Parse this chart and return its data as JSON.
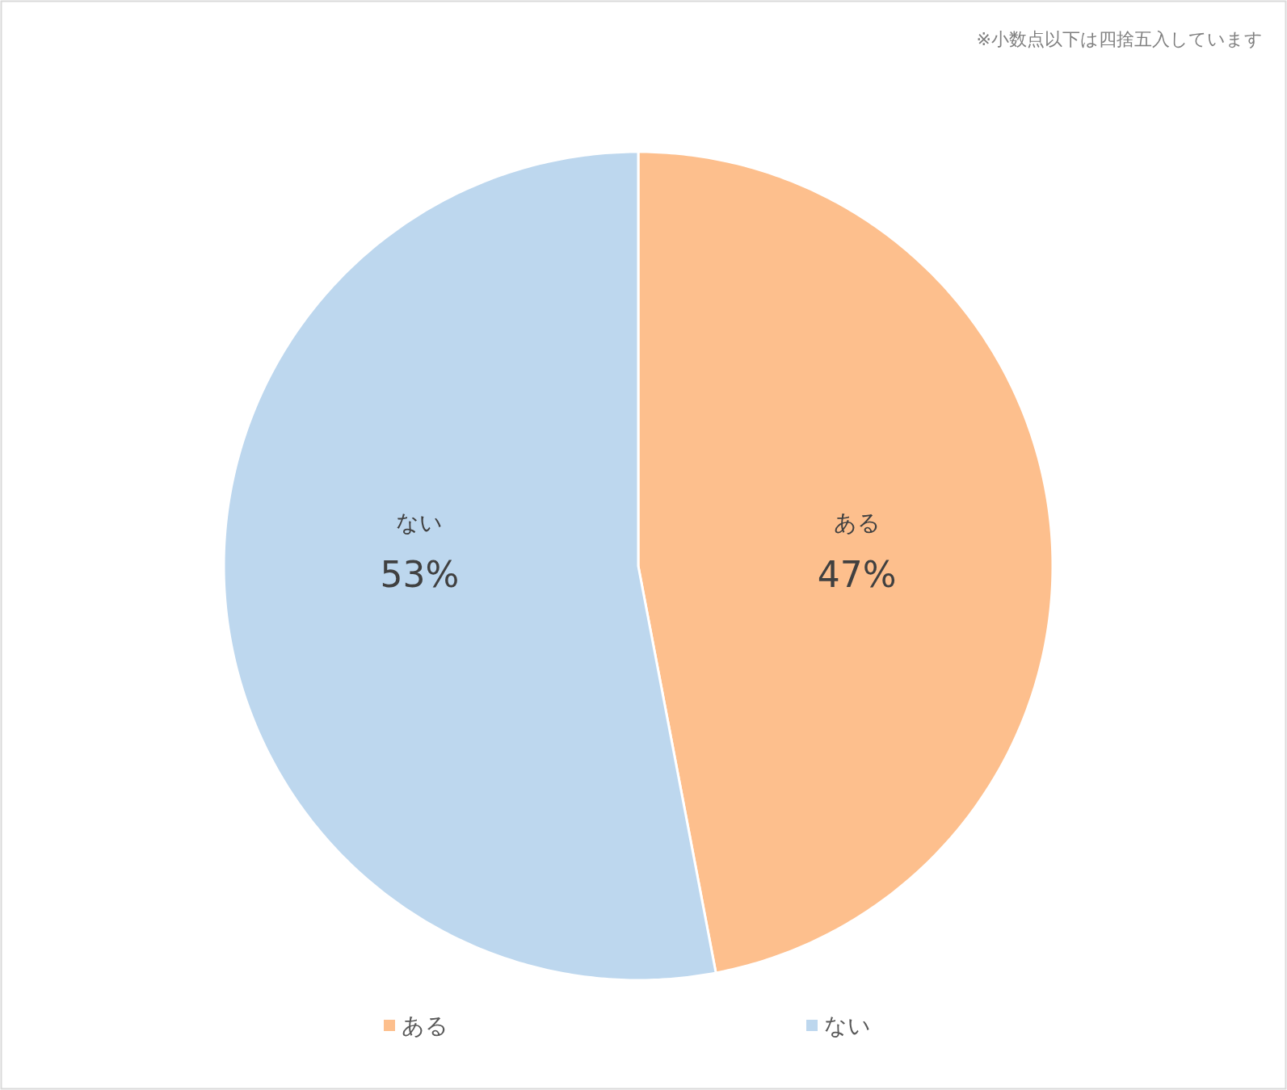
{
  "chart_data": {
    "type": "pie",
    "categories": [
      "ある",
      "ない"
    ],
    "values": [
      47,
      53
    ],
    "colors": [
      "#fdbf8d",
      "#bdd7ee"
    ],
    "annotations": [
      "※小数点以下は四捨五入しています"
    ],
    "legend": "bottom",
    "value_labels": [
      "47%",
      "53%"
    ]
  }
}
